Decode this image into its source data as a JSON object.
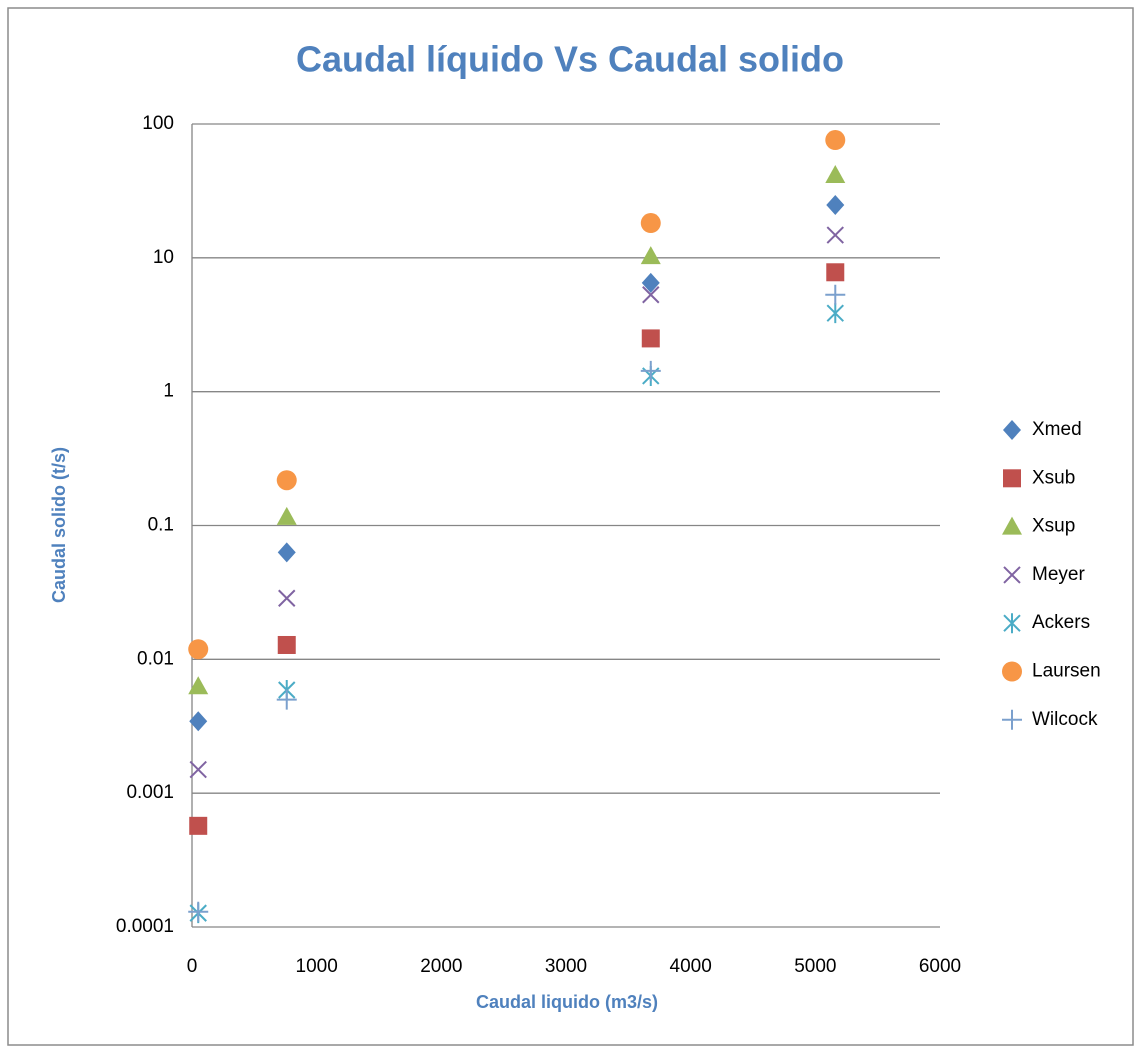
{
  "chart_data": {
    "type": "scatter",
    "title": "Caudal líquido Vs Caudal solido",
    "x_label": "Caudal liquido (m3/s)",
    "y_label": "Caudal solido (t/s)",
    "xlim": [
      0,
      6000
    ],
    "xticks": [
      0,
      1000,
      2000,
      3000,
      4000,
      5000,
      6000
    ],
    "ylim": [
      0.0001,
      100
    ],
    "yticks": [
      0.0001,
      0.001,
      0.01,
      0.1,
      1,
      10,
      100
    ],
    "y_scale": "log",
    "grid": true,
    "legend": "right",
    "x": [
      50,
      760,
      3680,
      5160
    ],
    "series": [
      {
        "name": "Xmed",
        "color": "#4f81bd",
        "marker": "diamond",
        "values": [
          0.00345,
          0.063,
          6.5,
          24.8
        ]
      },
      {
        "name": "Xsub",
        "color": "#c0504d",
        "marker": "square",
        "values": [
          0.00057,
          0.0128,
          2.5,
          7.8
        ]
      },
      {
        "name": "Xsup",
        "color": "#9bbb59",
        "marker": "triangle",
        "values": [
          0.0063,
          0.116,
          10.3,
          41.6
        ]
      },
      {
        "name": "Meyer",
        "color": "#8064a2",
        "marker": "x",
        "values": [
          0.0015,
          0.0286,
          5.3,
          14.8
        ]
      },
      {
        "name": "Ackers",
        "color": "#4bacc6",
        "marker": "asterisk",
        "values": [
          0.000127,
          0.0059,
          1.31,
          3.86
        ]
      },
      {
        "name": "Laursen",
        "color": "#f79646",
        "marker": "circle",
        "values": [
          0.0119,
          0.218,
          18.2,
          75.9
        ]
      },
      {
        "name": "Wilcock",
        "color": "#7ba0cd",
        "marker": "plus",
        "values": [
          0.00013,
          0.005,
          1.43,
          5.3
        ]
      }
    ]
  }
}
